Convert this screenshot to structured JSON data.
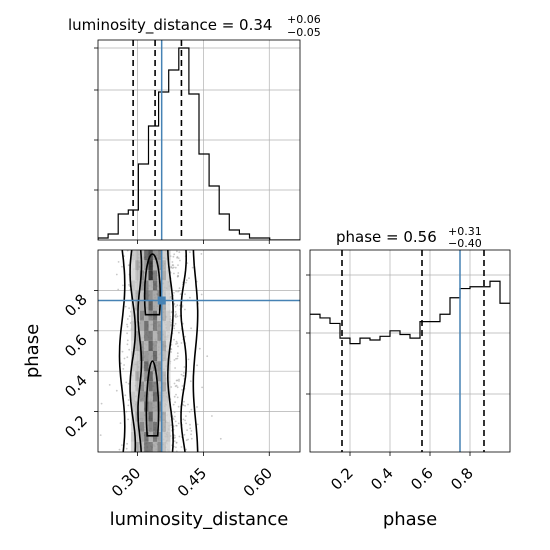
{
  "figure": {
    "top_title_main": "luminosity_distance = 0.34",
    "top_title_sup": "+0.06",
    "top_title_sub": "−0.05",
    "right_title_main": "phase = 0.56",
    "right_title_sup": "+0.31",
    "right_title_sub": "−0.40",
    "xlabel_left": "luminosity_distance",
    "xlabel_right": "phase",
    "ylabel_left": "phase"
  },
  "colors": {
    "truth": "#4682b4",
    "hist": "#000000",
    "grid": "#b0b0b0",
    "density_dark": "#111111"
  },
  "chart_data": [
    {
      "type": "histogram",
      "panel": "luminosity_distance marginal",
      "x_range": [
        0.21,
        0.67
      ],
      "bins": [
        0.21,
        0.233,
        0.256,
        0.279,
        0.302,
        0.325,
        0.348,
        0.371,
        0.394,
        0.417,
        0.44,
        0.463,
        0.486,
        0.509,
        0.532,
        0.555,
        0.578,
        0.601,
        0.624,
        0.647,
        0.67
      ],
      "counts": [
        0.01,
        0.03,
        0.13,
        0.15,
        0.38,
        0.57,
        0.74,
        0.85,
        0.96,
        0.73,
        0.43,
        0.27,
        0.13,
        0.05,
        0.03,
        0.01,
        0.01,
        0.0,
        0.0,
        0.0
      ],
      "quantiles": [
        0.29,
        0.34,
        0.4
      ],
      "truth": 0.355
    },
    {
      "type": "heatmap",
      "panel": "2D posterior",
      "x_param": "luminosity_distance",
      "y_param": "phase",
      "x_range": [
        0.21,
        0.67
      ],
      "y_range": [
        0.0,
        1.0
      ],
      "xticks": [
        0.3,
        0.45,
        0.6
      ],
      "yticks": [
        0.2,
        0.4,
        0.6,
        0.8
      ],
      "truth": [
        0.355,
        0.75
      ],
      "density_columns_x": [
        0.29,
        0.3,
        0.31,
        0.32,
        0.33,
        0.34,
        0.35,
        0.36,
        0.37
      ],
      "contour_x_bounds": [
        0.26,
        0.44
      ]
    },
    {
      "type": "histogram",
      "panel": "phase marginal",
      "x_range": [
        0.0,
        1.0
      ],
      "xticks": [
        0.2,
        0.4,
        0.6,
        0.8
      ],
      "bins": [
        0.0,
        0.05,
        0.1,
        0.15,
        0.2,
        0.25,
        0.3,
        0.35,
        0.4,
        0.45,
        0.5,
        0.55,
        0.6,
        0.65,
        0.7,
        0.75,
        0.8,
        0.85,
        0.9,
        0.95,
        1.0
      ],
      "counts": [
        0.75,
        0.73,
        0.7,
        0.62,
        0.59,
        0.62,
        0.61,
        0.63,
        0.66,
        0.64,
        0.62,
        0.71,
        0.71,
        0.75,
        0.84,
        0.89,
        0.9,
        0.9,
        0.93,
        0.81
      ],
      "quantiles": [
        0.16,
        0.56,
        0.87
      ],
      "truth": 0.75
    }
  ]
}
